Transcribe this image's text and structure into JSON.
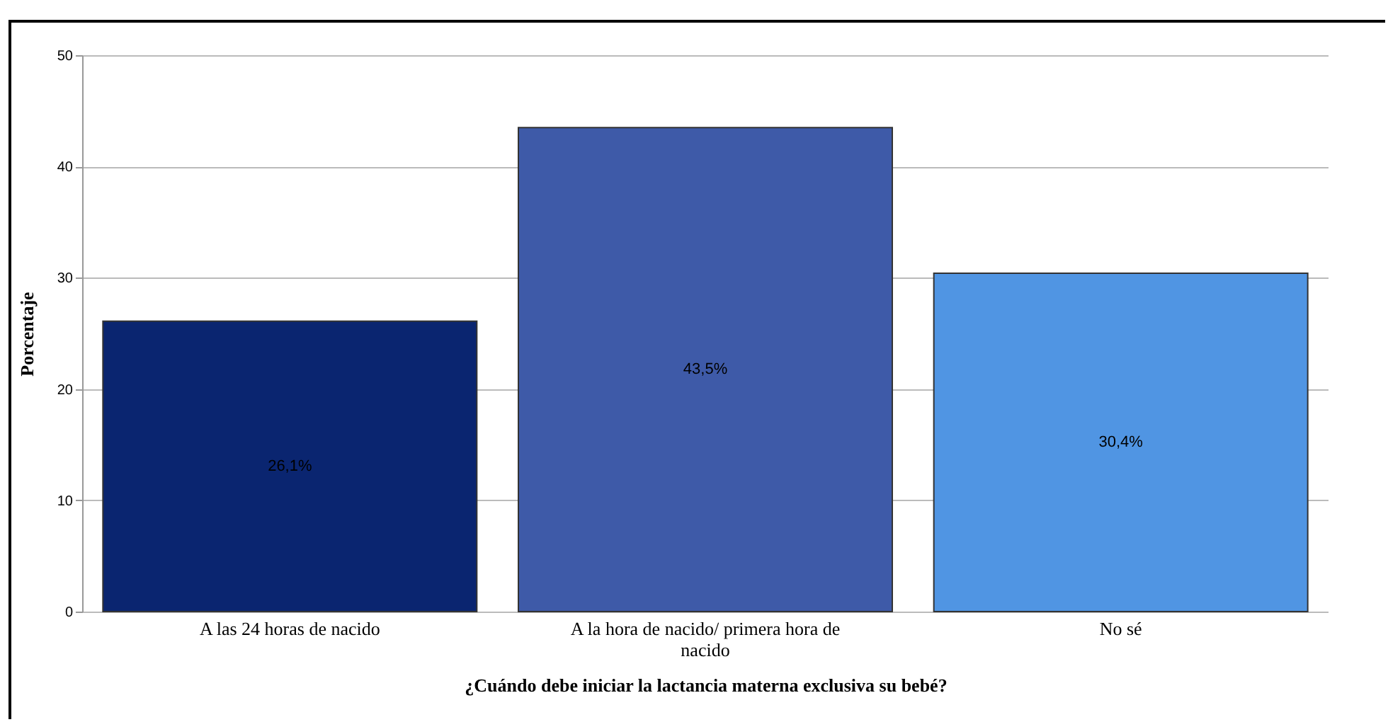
{
  "chart_data": {
    "type": "bar",
    "xlabel": "¿Cuándo debe iniciar la lactancia materna exclusiva su bebé?",
    "ylabel": "Porcentaje",
    "categories": [
      "A las 24 horas de nacido",
      "A la hora de nacido/ primera hora de nacido",
      "No sé"
    ],
    "values": [
      26.1,
      43.5,
      30.4
    ],
    "colors": [
      "#0a2570",
      "#3e5aa8",
      "#5095e3"
    ],
    "value_labels": [
      "26,1%",
      "43,5%",
      "30,4%"
    ],
    "ylim": [
      0,
      50
    ],
    "yticks": [
      0,
      10,
      20,
      30,
      40,
      50
    ],
    "grid": "y",
    "legend": false
  }
}
